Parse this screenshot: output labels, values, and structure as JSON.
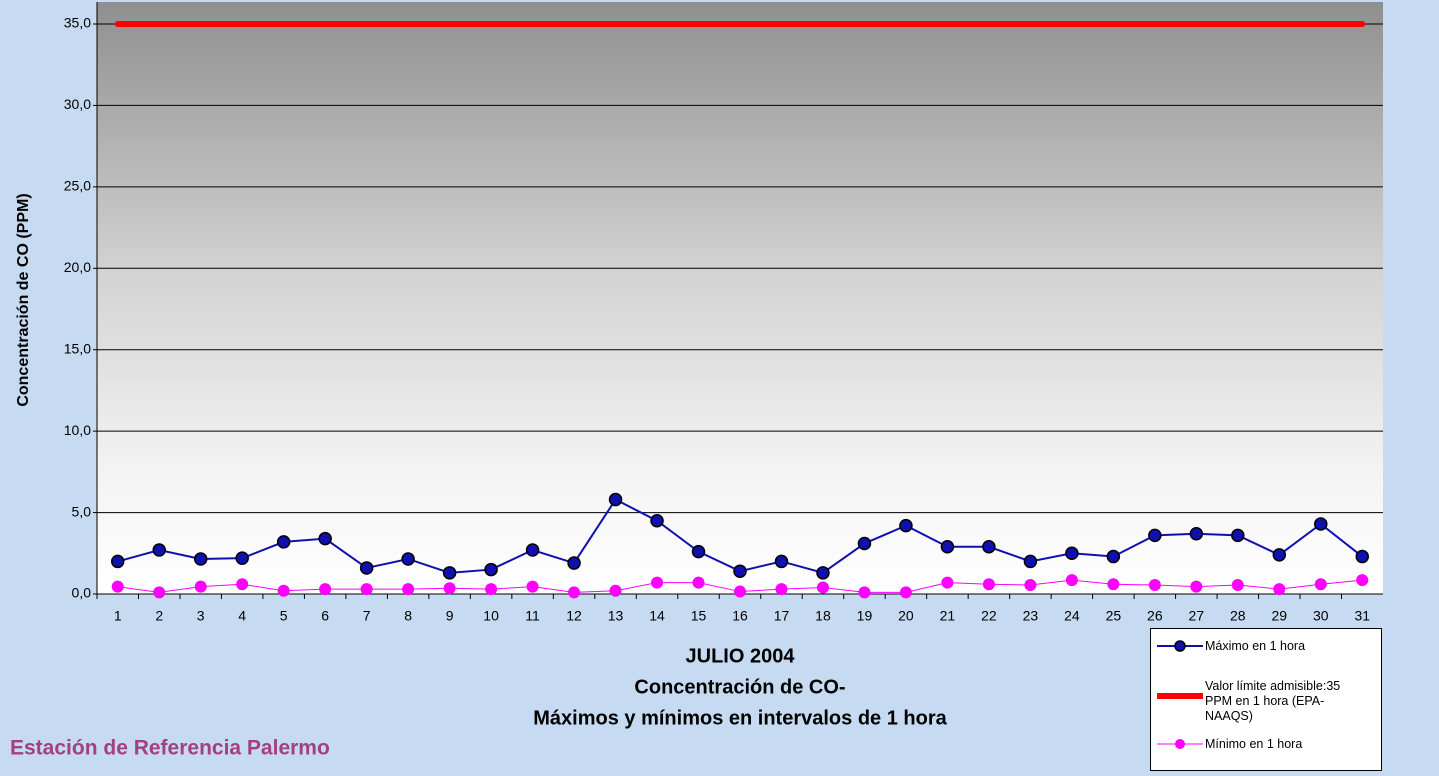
{
  "chart_data": {
    "type": "line",
    "title": [
      "JULIO 2004",
      "Concentración de CO-",
      "Máximos y mínimos en intervalos de 1 hora"
    ],
    "subtitle": "Estación de Referencia Palermo",
    "y_label": "Concentración de CO (PPM)",
    "categories": [
      "1",
      "2",
      "3",
      "4",
      "5",
      "6",
      "7",
      "8",
      "9",
      "10",
      "11",
      "12",
      "13",
      "14",
      "15",
      "16",
      "17",
      "18",
      "19",
      "20",
      "21",
      "22",
      "23",
      "24",
      "25",
      "26",
      "27",
      "28",
      "29",
      "30",
      "31"
    ],
    "series": [
      {
        "name": "Máximo en 1 hora",
        "color": "#1010b0",
        "marker": "circle",
        "line_width": 2,
        "values": [
          2.0,
          2.7,
          2.15,
          2.2,
          3.2,
          3.4,
          1.6,
          2.15,
          1.3,
          1.5,
          2.7,
          1.9,
          5.8,
          4.5,
          2.6,
          1.4,
          2.0,
          1.3,
          3.1,
          4.2,
          2.9,
          2.9,
          2.0,
          2.5,
          2.3,
          3.6,
          3.7,
          3.6,
          2.4,
          4.3,
          2.3
        ]
      },
      {
        "name": "Valor límite admisible:35 PPM en 1 hora (EPA- NAAQS)",
        "color": "#ff0000",
        "marker": "none",
        "line_width": 6,
        "values": [
          35,
          35,
          35,
          35,
          35,
          35,
          35,
          35,
          35,
          35,
          35,
          35,
          35,
          35,
          35,
          35,
          35,
          35,
          35,
          35,
          35,
          35,
          35,
          35,
          35,
          35,
          35,
          35,
          35,
          35,
          35
        ]
      },
      {
        "name": "Mínimo en 1 hora",
        "color": "#ff00ff",
        "marker": "circle",
        "line_width": 1,
        "values": [
          0.45,
          0.1,
          0.45,
          0.6,
          0.2,
          0.3,
          0.3,
          0.3,
          0.35,
          0.3,
          0.45,
          0.1,
          0.2,
          0.7,
          0.7,
          0.15,
          0.3,
          0.4,
          0.1,
          0.1,
          0.7,
          0.6,
          0.55,
          0.85,
          0.6,
          0.55,
          0.45,
          0.55,
          0.3,
          0.6,
          0.85
        ]
      }
    ],
    "ylim": [
      0,
      35
    ],
    "yticks": [
      {
        "value": 0,
        "label": "0,0"
      },
      {
        "value": 5,
        "label": "5,0"
      },
      {
        "value": 10,
        "label": "10,0"
      },
      {
        "value": 15,
        "label": "15,0"
      },
      {
        "value": 20,
        "label": "20,0"
      },
      {
        "value": 25,
        "label": "25,0"
      },
      {
        "value": 30,
        "label": "30,0"
      },
      {
        "value": 35,
        "label": "35,0"
      }
    ],
    "grid": true
  }
}
